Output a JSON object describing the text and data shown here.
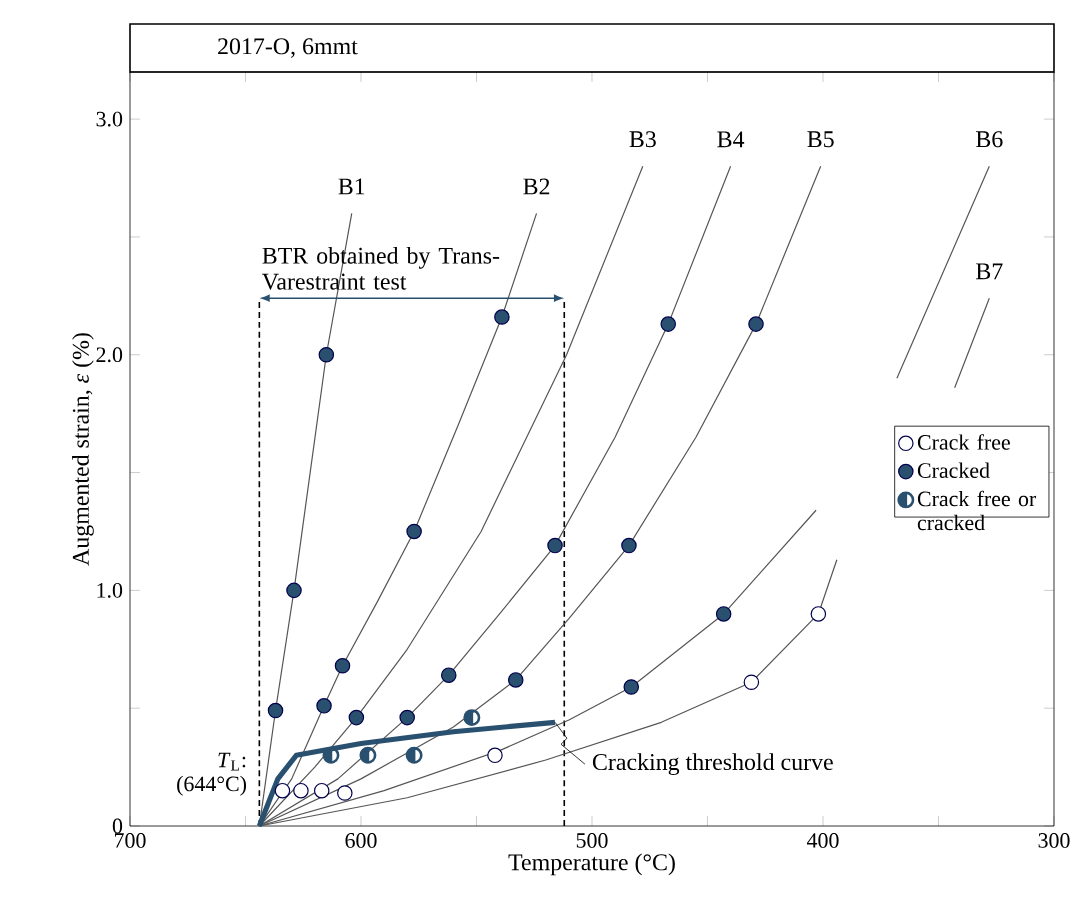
{
  "chart_data": {
    "type": "line",
    "title": "2017-O, 6mmt",
    "xlabel": "Temperature (°C)",
    "ylabel": "Augmented strain, *ε* (%)",
    "xlim": [
      700,
      300
    ],
    "ylim": [
      0,
      3.2
    ],
    "xticks": [
      700,
      {
        "value": 650,
        "label": null
      },
      600,
      {
        "value": 550,
        "label": null
      },
      500,
      {
        "value": 450,
        "label": null
      },
      400,
      {
        "value": 350,
        "label": null
      },
      300
    ],
    "yticks": [
      0,
      {
        "value": 0.5,
        "label": null
      },
      {
        "value": 1.0,
        "label": "1.0"
      },
      {
        "value": 1.5,
        "label": null
      },
      {
        "value": 2.0,
        "label": "2.0"
      },
      {
        "value": 2.5,
        "label": null
      },
      {
        "value": 3.0,
        "label": "3.0"
      }
    ],
    "legend": "right",
    "series": [
      {
        "name": "B1",
        "color": "#555555",
        "marker": "none",
        "x": [
          644,
          637,
          629,
          615,
          604
        ],
        "values": [
          0,
          0.49,
          1.0,
          2.0,
          2.6
        ]
      },
      {
        "name": "B2",
        "color": "#555555",
        "marker": "none",
        "x": [
          644,
          630,
          616,
          608,
          593,
          577,
          558,
          539,
          524
        ],
        "values": [
          0,
          0.2,
          0.51,
          0.68,
          0.95,
          1.25,
          1.7,
          2.16,
          2.6
        ]
      },
      {
        "name": "B3",
        "color": "#555555",
        "marker": "none",
        "x": [
          644,
          620,
          602,
          580,
          548,
          511,
          478
        ],
        "values": [
          0,
          0.25,
          0.46,
          0.75,
          1.25,
          2.0,
          2.8
        ]
      },
      {
        "name": "B4",
        "color": "#555555",
        "marker": "none",
        "x": [
          644,
          610,
          580,
          562,
          540,
          516,
          490,
          467,
          440
        ],
        "values": [
          0,
          0.2,
          0.46,
          0.64,
          0.9,
          1.19,
          1.65,
          2.13,
          2.8
        ]
      },
      {
        "name": "B5",
        "color": "#555555",
        "marker": "none",
        "x": [
          644,
          600,
          560,
          533,
          510,
          484,
          455,
          429,
          401
        ],
        "values": [
          0,
          0.2,
          0.42,
          0.62,
          0.88,
          1.19,
          1.65,
          2.13,
          2.8
        ]
      },
      {
        "name": "B6",
        "color": "#555555",
        "marker": "none",
        "x": [
          644,
          590,
          540,
          510,
          483,
          443,
          403,
          385,
          368,
          328
        ],
        "values": [
          0,
          0.15,
          0.32,
          0.45,
          0.59,
          0.9,
          1.34,
          null,
          1.9,
          2.8
        ]
      },
      {
        "name": "B7",
        "color": "#555555",
        "marker": "none",
        "x": [
          644,
          580,
          520,
          470,
          431,
          402,
          394,
          370,
          343,
          328
        ],
        "values": [
          0,
          0.12,
          0.28,
          0.44,
          0.61,
          0.9,
          1.13,
          null,
          1.86,
          2.24
        ]
      },
      {
        "name": "Cracking threshold curve",
        "color": "#2a5070",
        "marker": "none",
        "x": [
          644,
          636,
          628,
          600,
          560,
          516
        ],
        "values": [
          0,
          0.2,
          0.3,
          0.35,
          0.4,
          0.44
        ]
      },
      {
        "name": "Crack free",
        "type": "scatter",
        "color": "#ffffff",
        "marker": "circle",
        "x": [
          634,
          626,
          617,
          607,
          542,
          431,
          402
        ],
        "values": [
          0.15,
          0.15,
          0.15,
          0.14,
          0.3,
          0.61,
          0.9
        ]
      },
      {
        "name": "Cracked",
        "type": "scatter",
        "color": "#2a5070",
        "marker": "circle",
        "x": [
          637,
          629,
          615,
          616,
          608,
          577,
          539,
          602,
          580,
          562,
          533,
          516,
          467,
          484,
          429,
          483,
          443
        ],
        "values": [
          0.49,
          1.0,
          2.0,
          0.51,
          0.68,
          1.25,
          2.16,
          0.46,
          0.46,
          0.64,
          0.62,
          1.19,
          2.13,
          1.19,
          2.13,
          0.59,
          0.9
        ]
      },
      {
        "name": "Crack free or cracked",
        "type": "scatter",
        "color": "#2a5070",
        "x": [
          613,
          597,
          577,
          552
        ],
        "values": [
          0.3,
          0.3,
          0.3,
          0.46
        ]
      }
    ],
    "ref_lines": [
      {
        "axis": "x",
        "value": 644,
        "line_style": "dashed"
      },
      {
        "axis": "x",
        "value": 512,
        "line_style": "dashed"
      }
    ],
    "annotations": [
      "BTR obtained by Trans-Varestraint test",
      {
        "text": "*T*$_{L}$: (644°C)",
        "x": 644,
        "y": 0
      }
    ]
  }
}
